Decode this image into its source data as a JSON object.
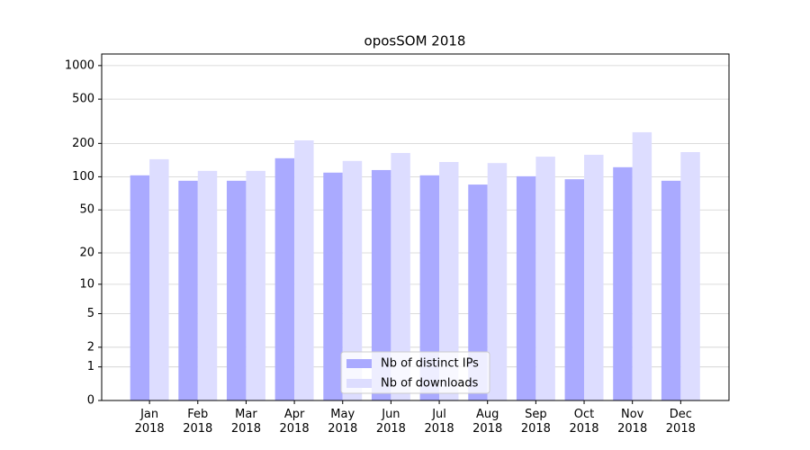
{
  "chart_data": {
    "type": "bar",
    "title": "oposSOM 2018",
    "categories": [
      "Jan\n2018",
      "Feb\n2018",
      "Mar\n2018",
      "Apr\n2018",
      "May\n2018",
      "Jun\n2018",
      "Jul\n2018",
      "Aug\n2018",
      "Sep\n2018",
      "Oct\n2018",
      "Nov\n2018",
      "Dec\n2018"
    ],
    "series": [
      {
        "name": "Nb of distinct IPs",
        "color": "#aaaaff",
        "values": [
          103,
          92,
          92,
          147,
          109,
          115,
          103,
          85,
          101,
          95,
          122,
          92
        ]
      },
      {
        "name": "Nb of downloads",
        "color": "#ddddff",
        "values": [
          144,
          113,
          113,
          213,
          139,
          164,
          136,
          133,
          152,
          158,
          252,
          167
        ]
      }
    ],
    "yscale": "log1p",
    "ylim": [
      0,
      1270
    ],
    "yticks": [
      0,
      1,
      2,
      5,
      10,
      20,
      50,
      100,
      200,
      500,
      1000
    ],
    "grid": true,
    "legend": "lower center"
  }
}
